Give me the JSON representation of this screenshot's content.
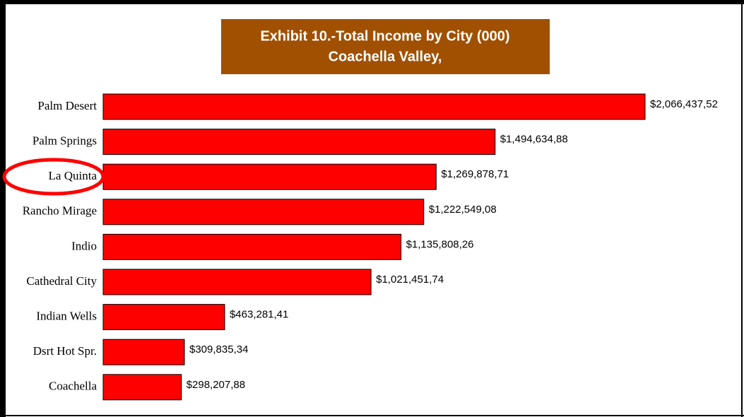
{
  "chart_data": {
    "type": "bar",
    "orientation": "horizontal",
    "title": [
      "Exhibit 10.-Total Income by City (000)",
      "Coachella Valley,"
    ],
    "categories": [
      "Palm Desert",
      "Palm Springs",
      "La Quinta",
      "Rancho Mirage",
      "Indio",
      "Cathedral City",
      "Indian Wells",
      "Dsrt Hot Spr.",
      "Coachella"
    ],
    "values": [
      2066437.52,
      1494634.88,
      1269878.71,
      1222549.08,
      1135808.26,
      1021451.74,
      463281.41,
      309835.34,
      298207.88
    ],
    "value_labels": [
      "$2,066,437,52",
      "$1,494,634,88",
      "$1,269,878,71",
      "$1,222,549,08",
      "$1,135,808,26",
      "$1,021,451,74",
      "$463,281,41",
      "$309,835,34",
      "$298,207,88"
    ],
    "color": "#ff0000"
  }
}
